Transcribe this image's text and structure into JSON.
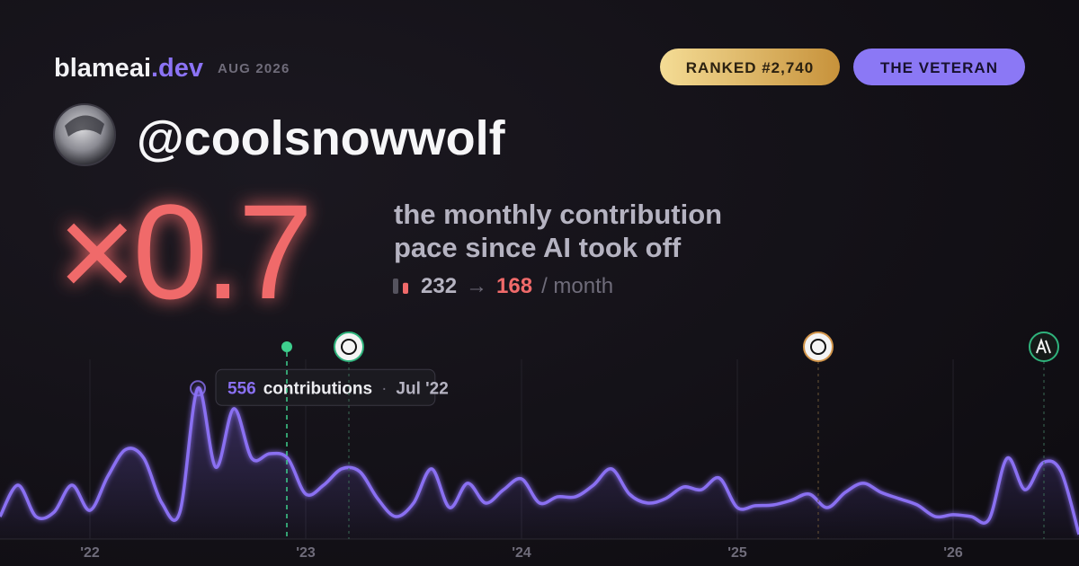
{
  "header": {
    "brand": "blameai",
    "brand_suffix": ".dev",
    "period": "AUG 2026",
    "rank_badge": "RANKED #2,740",
    "title_badge": "THE VETERAN"
  },
  "profile": {
    "handle": "@coolsnowwolf"
  },
  "stat": {
    "multiplier": "×0.7",
    "caption": [
      "the monthly contribution",
      "pace since AI took off"
    ],
    "before": 232,
    "arrow": "→",
    "after": 168,
    "unit": "/ month"
  },
  "chart_data": {
    "type": "line",
    "color": "#8a70f2",
    "x": [
      "2021-08",
      "2021-09",
      "2021-10",
      "2021-11",
      "2021-12",
      "2022-01",
      "2022-02",
      "2022-03",
      "2022-04",
      "2022-05",
      "2022-06",
      "2022-07",
      "2022-08",
      "2022-09",
      "2022-10",
      "2022-11",
      "2022-12",
      "2023-01",
      "2023-02",
      "2023-03",
      "2023-04",
      "2023-05",
      "2023-06",
      "2023-07",
      "2023-08",
      "2023-09",
      "2023-10",
      "2023-11",
      "2023-12",
      "2024-01",
      "2024-02",
      "2024-03",
      "2024-04",
      "2024-05",
      "2024-06",
      "2024-07",
      "2024-08",
      "2024-09",
      "2024-10",
      "2024-11",
      "2024-12",
      "2025-01",
      "2025-02",
      "2025-03",
      "2025-04",
      "2025-05",
      "2025-06",
      "2025-07",
      "2025-08",
      "2025-09",
      "2025-10",
      "2025-11",
      "2025-12",
      "2026-01",
      "2026-02",
      "2026-03",
      "2026-04",
      "2026-05",
      "2026-06",
      "2026-07",
      "2026-08"
    ],
    "values": [
      83,
      199,
      83,
      99,
      199,
      106,
      232,
      331,
      298,
      133,
      99,
      556,
      265,
      481,
      298,
      315,
      298,
      166,
      199,
      259,
      249,
      149,
      83,
      133,
      259,
      116,
      206,
      133,
      182,
      222,
      133,
      156,
      156,
      199,
      259,
      166,
      133,
      149,
      192,
      182,
      225,
      116,
      123,
      126,
      143,
      166,
      116,
      172,
      206,
      172,
      149,
      126,
      83,
      90,
      83,
      73,
      298,
      182,
      282,
      249,
      17
    ],
    "ylim": [
      0,
      600
    ],
    "xticks": [
      {
        "value": "2022-01",
        "label": "'22"
      },
      {
        "value": "2023-01",
        "label": "'23"
      },
      {
        "value": "2024-01",
        "label": "'24"
      },
      {
        "value": "2025-01",
        "label": "'25"
      },
      {
        "value": "2026-01",
        "label": "'26"
      }
    ],
    "tooltip": {
      "label": "contributions",
      "separator": "·",
      "date": "Jul '22"
    }
  }
}
